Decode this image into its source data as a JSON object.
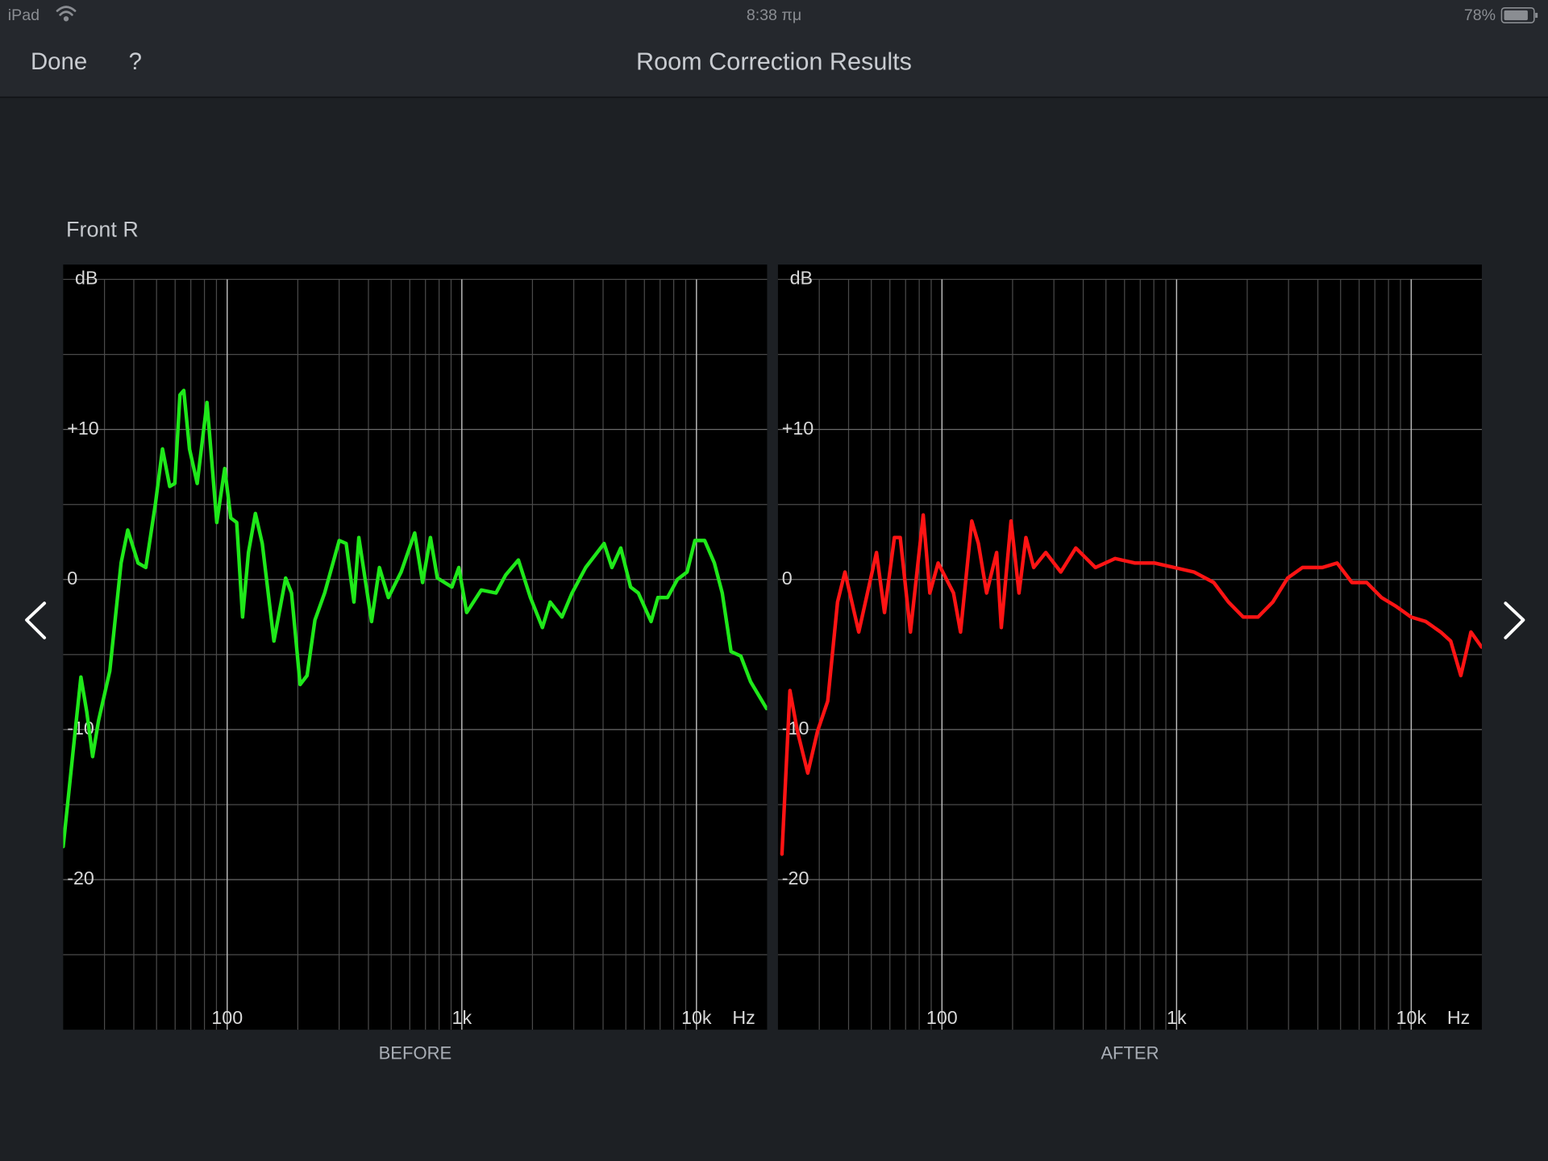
{
  "status_bar": {
    "device": "iPad",
    "time": "8:38 πμ",
    "battery": "78%"
  },
  "nav": {
    "done": "Done",
    "help": "?",
    "title": "Room Correction Results"
  },
  "channel": "Front R",
  "chart_data": [
    {
      "type": "line",
      "title": "BEFORE",
      "x_label": "Hz",
      "y_label": "dB",
      "log_x": true,
      "grid": true,
      "xlim": [
        20,
        20000
      ],
      "ylim": [
        -30,
        20
      ],
      "xticks": [
        {
          "value": 100,
          "label": "100"
        },
        {
          "value": 1000,
          "label": "1k"
        },
        {
          "value": 10000,
          "label": "10k"
        }
      ],
      "minor_xticks": [
        30,
        40,
        50,
        60,
        70,
        80,
        90,
        200,
        300,
        400,
        500,
        600,
        700,
        800,
        900,
        2000,
        3000,
        4000,
        5000,
        6000,
        7000,
        8000,
        9000
      ],
      "yticks": [
        {
          "value": 10,
          "label": "+10"
        },
        0,
        -10,
        -20
      ],
      "minor_yticks": [
        20,
        15,
        5,
        -5,
        -15,
        -25
      ],
      "color": "#1fe81a",
      "x": [
        20,
        21.2,
        22.5,
        23.8,
        25.2,
        26.7,
        28.3,
        31.6,
        35.3,
        37.7,
        41.7,
        45,
        49.5,
        53,
        56.9,
        59.8,
        62.9,
        65.3,
        69.1,
        74.5,
        82,
        90.3,
        97.6,
        103.6,
        109.8,
        116.3,
        123.2,
        131.9,
        141.1,
        158.2,
        177.5,
        188,
        204.6,
        219,
        236.6,
        260.2,
        300.3,
        321.4,
        346.9,
        364,
        412.4,
        445.4,
        486.4,
        551.1,
        629.8,
        680.4,
        734.9,
        786.2,
        907.4,
        971.1,
        1049,
        1210,
        1398,
        1538,
        1742,
        1960,
        2205,
        2380,
        2672,
        2950,
        3372,
        4040,
        4363,
        4758,
        5239,
        5653,
        6405,
        6850,
        7530,
        8290,
        9120,
        9850,
        10840,
        11920,
        12880,
        14040,
        15450,
        17000,
        19900
      ],
      "values": [
        -17.8,
        -14,
        -10.1,
        -6.5,
        -8.8,
        -11.8,
        -9.4,
        -6.1,
        1.1,
        3.3,
        1.1,
        0.8,
        5.1,
        8.7,
        6.2,
        6.4,
        12.3,
        12.6,
        8.7,
        6.4,
        11.8,
        3.8,
        7.4,
        4.1,
        3.8,
        -2.5,
        1.8,
        4.4,
        2.4,
        -4.1,
        0.1,
        -0.9,
        -7,
        -6.4,
        -2.7,
        -0.9,
        2.6,
        2.4,
        -1.5,
        2.8,
        -2.8,
        0.8,
        -1.2,
        0.5,
        3.1,
        -0.2,
        2.8,
        0.1,
        -0.5,
        0.8,
        -2.2,
        -0.7,
        -0.9,
        0.3,
        1.3,
        -1.2,
        -3.2,
        -1.5,
        -2.5,
        -0.9,
        0.8,
        2.4,
        0.8,
        2.1,
        -0.5,
        -0.9,
        -2.8,
        -1.2,
        -1.2,
        0,
        0.5,
        2.6,
        2.6,
        1.1,
        -0.9,
        -4.8,
        -5.1,
        -6.8,
        -8.6
      ]
    },
    {
      "type": "line",
      "title": "AFTER",
      "x_label": "Hz",
      "y_label": "dB",
      "log_x": true,
      "grid": true,
      "xlim": [
        20,
        20000
      ],
      "ylim": [
        -30,
        20
      ],
      "xticks": [
        {
          "value": 100,
          "label": "100"
        },
        {
          "value": 1000,
          "label": "1k"
        },
        {
          "value": 10000,
          "label": "10k"
        }
      ],
      "minor_xticks": [
        30,
        40,
        50,
        60,
        70,
        80,
        90,
        200,
        300,
        400,
        500,
        600,
        700,
        800,
        900,
        2000,
        3000,
        4000,
        5000,
        6000,
        7000,
        8000,
        9000
      ],
      "yticks": [
        {
          "value": 10,
          "label": "+10"
        },
        0,
        -10,
        -20
      ],
      "minor_yticks": [
        20,
        15,
        5,
        -5,
        -15,
        -25
      ],
      "color": "#ff1414",
      "x": [
        20.8,
        22.5,
        24.2,
        26.8,
        29.5,
        32.6,
        35.9,
        38.6,
        44.2,
        52.6,
        56.9,
        62.7,
        66.4,
        73.4,
        83.2,
        88.8,
        96.3,
        112,
        120,
        134,
        143,
        155,
        171,
        179,
        197,
        213,
        228,
        246,
        277,
        321,
        372,
        451,
        547,
        664,
        805,
        977,
        1186,
        1440,
        1663,
        1923,
        2224,
        2571,
        2974,
        3439,
        4180,
        4833,
        5588,
        6461,
        7470,
        8640,
        9980,
        11540,
        13350,
        14730,
        16270,
        17970,
        19950
      ],
      "values": [
        -18.3,
        -7.4,
        -10.1,
        -12.9,
        -10.1,
        -8.1,
        -1.5,
        0.5,
        -3.5,
        1.8,
        -2.2,
        2.8,
        2.8,
        -3.5,
        4.3,
        -0.9,
        1.1,
        -0.9,
        -3.5,
        3.9,
        2.4,
        -0.9,
        1.8,
        -3.2,
        3.9,
        -0.9,
        2.8,
        0.8,
        1.8,
        0.5,
        2.1,
        0.8,
        1.4,
        1.1,
        1.1,
        0.8,
        0.5,
        -0.2,
        -1.5,
        -2.5,
        -2.5,
        -1.5,
        0.1,
        0.8,
        0.8,
        1.1,
        -0.2,
        -0.2,
        -1.2,
        -1.8,
        -2.5,
        -2.8,
        -3.5,
        -4.1,
        -6.4,
        -3.5,
        -4.5
      ]
    }
  ]
}
